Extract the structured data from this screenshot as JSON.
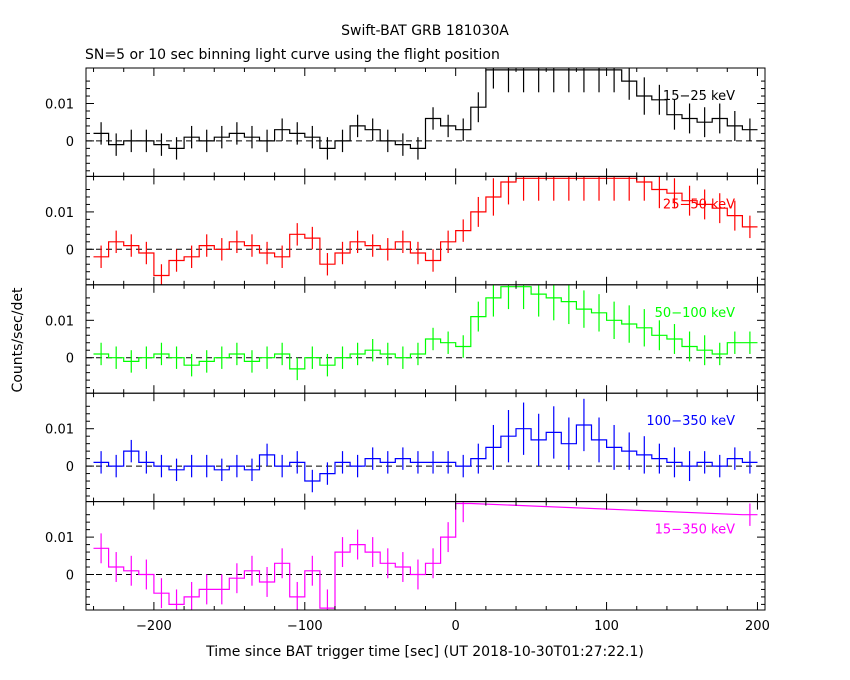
{
  "chart_data": {
    "type": "line",
    "title": "Swift-BAT GRB 181030A",
    "subtitle": "SN=5 or 10 sec binning light curve using the flight position",
    "xlabel": "Time since BAT trigger time [sec] (UT 2018-10-30T01:27:22.1)",
    "ylabel": "Counts/sec/det",
    "xlim": [
      -245,
      205
    ],
    "ylim": [
      -0.0095,
      0.0195
    ],
    "x_ticks": [
      -200,
      -100,
      0,
      100,
      200
    ],
    "x_tick_labels": [
      "−200",
      "−100",
      "0",
      "100",
      "200"
    ],
    "y_ticks": [
      0,
      0.01
    ],
    "y_tick_labels": [
      "0",
      "0.01"
    ],
    "zero_line": "dashed",
    "panels": [
      {
        "name": "15−25 keV",
        "color": "#000000",
        "x": [
          -235,
          -225,
          -215,
          -205,
          -195,
          -185,
          -175,
          -165,
          -155,
          -145,
          -135,
          -125,
          -115,
          -105,
          -95,
          -85,
          -75,
          -65,
          -55,
          -45,
          -35,
          -25,
          -15,
          -5,
          5,
          15,
          25,
          35,
          45,
          55,
          65,
          75,
          85,
          95,
          105,
          115,
          125,
          135,
          145,
          155,
          165,
          175,
          185,
          195
        ],
        "y": [
          0.002,
          -0.001,
          0.0,
          0.0,
          -0.001,
          -0.002,
          0.001,
          0.0,
          0.001,
          0.002,
          0.001,
          0.0,
          0.003,
          0.002,
          0.001,
          -0.002,
          0.0,
          0.004,
          0.003,
          0.0,
          -0.001,
          -0.002,
          0.006,
          0.004,
          0.003,
          0.009,
          0.019,
          0.019,
          0.019,
          0.019,
          0.019,
          0.019,
          0.019,
          0.019,
          0.019,
          0.016,
          0.012,
          0.011,
          0.007,
          0.006,
          0.005,
          0.006,
          0.004,
          0.003
        ],
        "err": [
          0.003,
          0.003,
          0.003,
          0.003,
          0.003,
          0.003,
          0.003,
          0.003,
          0.003,
          0.003,
          0.003,
          0.003,
          0.003,
          0.003,
          0.003,
          0.003,
          0.003,
          0.003,
          0.003,
          0.003,
          0.003,
          0.003,
          0.003,
          0.003,
          0.003,
          0.004,
          0.005,
          0.006,
          0.006,
          0.006,
          0.006,
          0.006,
          0.006,
          0.006,
          0.006,
          0.005,
          0.005,
          0.004,
          0.004,
          0.004,
          0.004,
          0.004,
          0.004,
          0.003
        ]
      },
      {
        "name": "25−50 keV",
        "color": "#ff0000",
        "x": [
          -235,
          -225,
          -215,
          -205,
          -195,
          -185,
          -175,
          -165,
          -155,
          -145,
          -135,
          -125,
          -115,
          -105,
          -95,
          -85,
          -75,
          -65,
          -55,
          -45,
          -35,
          -25,
          -15,
          -5,
          5,
          15,
          25,
          35,
          45,
          55,
          65,
          75,
          85,
          95,
          105,
          115,
          125,
          135,
          145,
          155,
          165,
          175,
          185,
          195
        ],
        "y": [
          -0.002,
          0.002,
          0.001,
          -0.001,
          -0.007,
          -0.003,
          -0.002,
          0.001,
          0.0,
          0.002,
          0.001,
          -0.001,
          -0.002,
          0.004,
          0.003,
          -0.004,
          -0.001,
          0.002,
          0.001,
          0.0,
          0.002,
          -0.001,
          -0.003,
          0.002,
          0.005,
          0.01,
          0.014,
          0.018,
          0.019,
          0.019,
          0.019,
          0.019,
          0.019,
          0.019,
          0.019,
          0.019,
          0.018,
          0.016,
          0.015,
          0.013,
          0.012,
          0.011,
          0.009,
          0.006
        ],
        "err": [
          0.003,
          0.003,
          0.003,
          0.003,
          0.003,
          0.003,
          0.003,
          0.003,
          0.003,
          0.003,
          0.003,
          0.003,
          0.003,
          0.003,
          0.003,
          0.003,
          0.003,
          0.003,
          0.003,
          0.003,
          0.003,
          0.003,
          0.003,
          0.003,
          0.003,
          0.004,
          0.005,
          0.006,
          0.006,
          0.006,
          0.006,
          0.006,
          0.006,
          0.006,
          0.006,
          0.006,
          0.005,
          0.005,
          0.004,
          0.004,
          0.004,
          0.004,
          0.004,
          0.003
        ]
      },
      {
        "name": "50−100 keV",
        "color": "#00ff00",
        "x": [
          -235,
          -225,
          -215,
          -205,
          -195,
          -185,
          -175,
          -165,
          -155,
          -145,
          -135,
          -125,
          -115,
          -105,
          -95,
          -85,
          -75,
          -65,
          -55,
          -45,
          -35,
          -25,
          -15,
          -5,
          5,
          15,
          25,
          35,
          45,
          55,
          65,
          75,
          85,
          95,
          105,
          115,
          125,
          135,
          145,
          155,
          165,
          175,
          185,
          195
        ],
        "y": [
          0.001,
          0.0,
          -0.001,
          0.0,
          0.001,
          0.0,
          -0.002,
          -0.001,
          0.0,
          0.001,
          -0.001,
          0.0,
          0.001,
          -0.003,
          0.0,
          -0.002,
          0.0,
          0.001,
          0.002,
          0.001,
          0.0,
          0.001,
          0.005,
          0.004,
          0.003,
          0.011,
          0.016,
          0.019,
          0.019,
          0.017,
          0.016,
          0.015,
          0.013,
          0.012,
          0.01,
          0.009,
          0.008,
          0.006,
          0.005,
          0.003,
          0.002,
          0.001,
          0.004,
          0.004
        ],
        "err": [
          0.003,
          0.003,
          0.003,
          0.003,
          0.003,
          0.003,
          0.003,
          0.003,
          0.003,
          0.003,
          0.003,
          0.003,
          0.003,
          0.003,
          0.003,
          0.003,
          0.003,
          0.003,
          0.003,
          0.003,
          0.003,
          0.003,
          0.003,
          0.003,
          0.003,
          0.004,
          0.005,
          0.006,
          0.006,
          0.006,
          0.006,
          0.006,
          0.005,
          0.005,
          0.005,
          0.005,
          0.005,
          0.004,
          0.004,
          0.004,
          0.004,
          0.003,
          0.003,
          0.003
        ]
      },
      {
        "name": "100−350 keV",
        "color": "#0000ff",
        "x": [
          -235,
          -225,
          -215,
          -205,
          -195,
          -185,
          -175,
          -165,
          -155,
          -145,
          -135,
          -125,
          -115,
          -105,
          -95,
          -85,
          -75,
          -65,
          -55,
          -45,
          -35,
          -25,
          -15,
          -5,
          5,
          15,
          25,
          35,
          45,
          55,
          65,
          75,
          85,
          95,
          105,
          115,
          125,
          135,
          145,
          155,
          165,
          175,
          185,
          195
        ],
        "y": [
          0.001,
          0.0,
          0.004,
          0.001,
          0.0,
          -0.001,
          0.0,
          0.0,
          -0.001,
          0.0,
          -0.001,
          0.003,
          0.0,
          0.001,
          -0.004,
          -0.002,
          0.001,
          0.0,
          0.002,
          0.001,
          0.002,
          0.001,
          0.001,
          0.001,
          0.0,
          0.002,
          0.005,
          0.008,
          0.01,
          0.007,
          0.009,
          0.006,
          0.011,
          0.007,
          0.005,
          0.004,
          0.003,
          0.002,
          0.001,
          0.0,
          0.001,
          0.0,
          0.002,
          0.001
        ],
        "err": [
          0.003,
          0.003,
          0.003,
          0.003,
          0.003,
          0.003,
          0.003,
          0.003,
          0.003,
          0.003,
          0.003,
          0.003,
          0.003,
          0.003,
          0.003,
          0.003,
          0.003,
          0.003,
          0.003,
          0.003,
          0.003,
          0.003,
          0.003,
          0.003,
          0.003,
          0.004,
          0.006,
          0.007,
          0.007,
          0.007,
          0.007,
          0.007,
          0.007,
          0.006,
          0.006,
          0.005,
          0.005,
          0.004,
          0.004,
          0.004,
          0.003,
          0.003,
          0.003,
          0.003
        ]
      },
      {
        "name": "15−350 keV",
        "color": "#ff00ff",
        "x": [
          -235,
          -225,
          -215,
          -205,
          -195,
          -185,
          -175,
          -165,
          -155,
          -145,
          -135,
          -125,
          -115,
          -105,
          -95,
          -85,
          -75,
          -65,
          -55,
          -45,
          -35,
          -25,
          -15,
          -5,
          5,
          195
        ],
        "y": [
          0.007,
          0.002,
          0.001,
          0.0,
          -0.005,
          -0.008,
          -0.006,
          -0.004,
          -0.004,
          -0.001,
          0.001,
          -0.002,
          0.003,
          -0.006,
          0.001,
          -0.009,
          0.006,
          0.008,
          0.006,
          0.003,
          0.002,
          0.0,
          0.003,
          0.01,
          0.019,
          0.016
        ],
        "err": [
          0.004,
          0.004,
          0.004,
          0.004,
          0.004,
          0.004,
          0.004,
          0.004,
          0.004,
          0.004,
          0.004,
          0.004,
          0.004,
          0.004,
          0.004,
          0.005,
          0.004,
          0.004,
          0.004,
          0.004,
          0.004,
          0.004,
          0.004,
          0.004,
          0.005,
          0.003
        ]
      }
    ]
  }
}
